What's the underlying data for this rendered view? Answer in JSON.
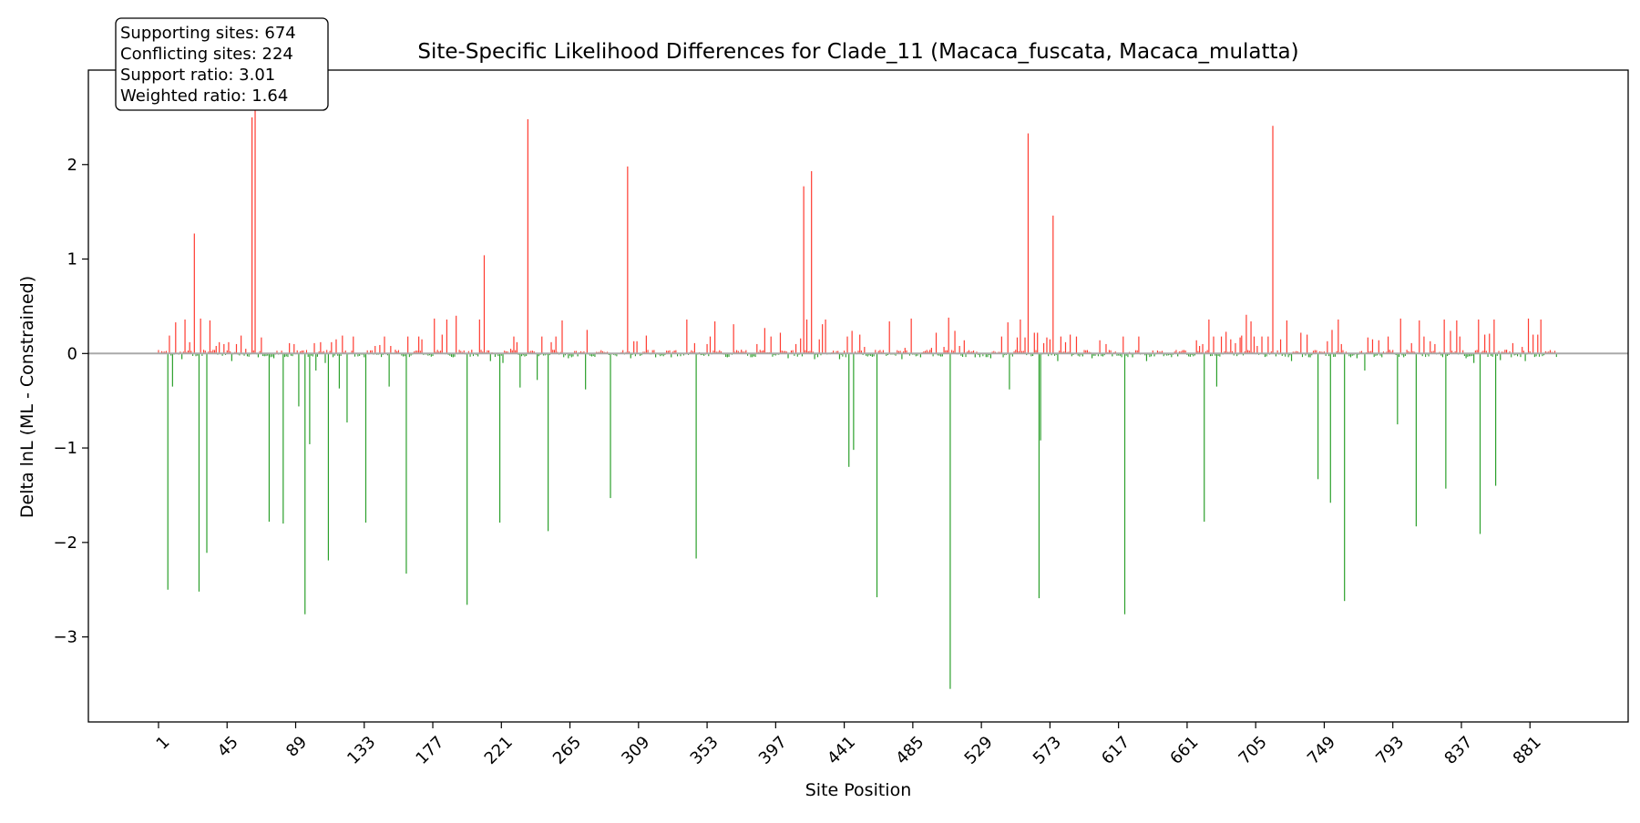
{
  "chart_data": {
    "type": "bar",
    "title": "Site-Specific Likelihood Differences for Clade_11 (Macaca_fuscata, Macaca_mulatta)",
    "xlabel": "Site Position",
    "ylabel": "Delta lnL (ML - Constrained)",
    "xlim": [
      -44,
      944
    ],
    "ylim": [
      -3.9,
      3.0
    ],
    "x_ticks": [
      1,
      45,
      89,
      133,
      177,
      221,
      265,
      309,
      353,
      397,
      441,
      485,
      529,
      573,
      617,
      661,
      705,
      749,
      793,
      837,
      881
    ],
    "y_ticks": [
      -3,
      -2,
      -1,
      0,
      1,
      2
    ],
    "y_tick_labels": [
      "−3",
      "−2",
      "−1",
      "0",
      "1",
      "2"
    ],
    "n_sites": 898,
    "grid": false,
    "zero_line": true,
    "colors": {
      "positive": "#ff3b30",
      "negative": "#2ca02c",
      "zero_line": "#aaaaaa"
    },
    "stats_box": [
      "Supporting sites: 674",
      "Conflicting sites: 224",
      "Support ratio: 3.01",
      "Weighted ratio: 1.64"
    ],
    "sites": [
      [
        7,
        -2.5
      ],
      [
        8,
        0.19
      ],
      [
        10,
        -0.35
      ],
      [
        12,
        0.33
      ],
      [
        16,
        -0.06
      ],
      [
        18,
        0.36
      ],
      [
        21,
        0.12
      ],
      [
        24,
        1.27
      ],
      [
        27,
        -2.52
      ],
      [
        28,
        0.37
      ],
      [
        32,
        -2.11
      ],
      [
        34,
        0.35
      ],
      [
        38,
        0.08
      ],
      [
        40,
        0.12
      ],
      [
        43,
        0.1
      ],
      [
        46,
        0.12
      ],
      [
        48,
        -0.08
      ],
      [
        51,
        0.1
      ],
      [
        54,
        0.19
      ],
      [
        57,
        0.05
      ],
      [
        61,
        2.5
      ],
      [
        63,
        2.6
      ],
      [
        65,
        -0.04
      ],
      [
        67,
        0.17
      ],
      [
        72,
        -1.78
      ],
      [
        75,
        -0.05
      ],
      [
        81,
        -1.8
      ],
      [
        85,
        0.11
      ],
      [
        88,
        0.1
      ],
      [
        91,
        -0.56
      ],
      [
        95,
        -2.76
      ],
      [
        98,
        -0.96
      ],
      [
        101,
        0.11
      ],
      [
        102,
        -0.18
      ],
      [
        105,
        0.12
      ],
      [
        108,
        -0.1
      ],
      [
        110,
        -2.19
      ],
      [
        112,
        0.12
      ],
      [
        115,
        0.15
      ],
      [
        117,
        -0.37
      ],
      [
        119,
        0.19
      ],
      [
        122,
        -0.73
      ],
      [
        126,
        0.18
      ],
      [
        134,
        -1.79
      ],
      [
        140,
        0.08
      ],
      [
        143,
        0.09
      ],
      [
        146,
        0.18
      ],
      [
        149,
        -0.35
      ],
      [
        150,
        0.08
      ],
      [
        153,
        0.04
      ],
      [
        160,
        -2.33
      ],
      [
        161,
        0.18
      ],
      [
        168,
        0.18
      ],
      [
        170,
        0.15
      ],
      [
        178,
        0.37
      ],
      [
        183,
        0.2
      ],
      [
        186,
        0.36
      ],
      [
        190,
        -0.04
      ],
      [
        192,
        0.4
      ],
      [
        199,
        -2.66
      ],
      [
        202,
        0.04
      ],
      [
        207,
        0.36
      ],
      [
        210,
        1.04
      ],
      [
        214,
        -0.08
      ],
      [
        220,
        -1.79
      ],
      [
        222,
        -0.1
      ],
      [
        227,
        0.05
      ],
      [
        229,
        0.18
      ],
      [
        231,
        0.12
      ],
      [
        233,
        -0.36
      ],
      [
        238,
        2.48
      ],
      [
        244,
        -0.28
      ],
      [
        247,
        0.18
      ],
      [
        251,
        -1.88
      ],
      [
        253,
        0.12
      ],
      [
        256,
        0.18
      ],
      [
        260,
        0.35
      ],
      [
        264,
        -0.05
      ],
      [
        270,
        -0.03
      ],
      [
        275,
        -0.38
      ],
      [
        276,
        0.25
      ],
      [
        291,
        -1.53
      ],
      [
        302,
        1.98
      ],
      [
        304,
        -0.05
      ],
      [
        306,
        0.13
      ],
      [
        308,
        0.13
      ],
      [
        314,
        0.19
      ],
      [
        320,
        -0.04
      ],
      [
        330,
        -0.04
      ],
      [
        340,
        0.36
      ],
      [
        345,
        0.11
      ],
      [
        346,
        -2.17
      ],
      [
        353,
        0.1
      ],
      [
        355,
        0.18
      ],
      [
        358,
        0.34
      ],
      [
        366,
        -0.04
      ],
      [
        370,
        0.31
      ],
      [
        375,
        0.04
      ],
      [
        385,
        0.1
      ],
      [
        390,
        0.27
      ],
      [
        394,
        0.18
      ],
      [
        400,
        0.22
      ],
      [
        405,
        -0.05
      ],
      [
        410,
        0.1
      ],
      [
        413,
        0.16
      ],
      [
        415,
        1.77
      ],
      [
        417,
        0.36
      ],
      [
        420,
        1.93
      ],
      [
        422,
        -0.06
      ],
      [
        425,
        0.15
      ],
      [
        427,
        0.31
      ],
      [
        429,
        0.36
      ],
      [
        434,
        0.03
      ],
      [
        438,
        -0.06
      ],
      [
        441,
        0.03
      ],
      [
        443,
        0.18
      ],
      [
        444,
        -1.2
      ],
      [
        446,
        0.24
      ],
      [
        447,
        -1.02
      ],
      [
        451,
        0.2
      ],
      [
        454,
        0.07
      ],
      [
        462,
        -2.58
      ],
      [
        470,
        0.34
      ],
      [
        478,
        -0.06
      ],
      [
        480,
        0.06
      ],
      [
        484,
        0.37
      ],
      [
        490,
        -0.04
      ],
      [
        497,
        0.06
      ],
      [
        500,
        0.22
      ],
      [
        505,
        0.07
      ],
      [
        508,
        0.38
      ],
      [
        509,
        -3.55
      ],
      [
        512,
        0.24
      ],
      [
        515,
        0.08
      ],
      [
        518,
        0.14
      ],
      [
        525,
        -0.04
      ],
      [
        535,
        -0.05
      ],
      [
        542,
        0.18
      ],
      [
        546,
        0.33
      ],
      [
        547,
        -0.38
      ],
      [
        552,
        0.17
      ],
      [
        554,
        0.36
      ],
      [
        557,
        0.17
      ],
      [
        559,
        2.33
      ],
      [
        563,
        0.22
      ],
      [
        565,
        0.22
      ],
      [
        566,
        -2.59
      ],
      [
        567,
        -0.92
      ],
      [
        569,
        0.11
      ],
      [
        571,
        0.17
      ],
      [
        573,
        0.15
      ],
      [
        575,
        1.46
      ],
      [
        578,
        -0.08
      ],
      [
        580,
        0.18
      ],
      [
        583,
        0.12
      ],
      [
        586,
        0.2
      ],
      [
        590,
        0.18
      ],
      [
        594,
        -0.03
      ],
      [
        600,
        -0.05
      ],
      [
        605,
        0.14
      ],
      [
        609,
        0.1
      ],
      [
        613,
        -0.03
      ],
      [
        620,
        0.18
      ],
      [
        621,
        -2.76
      ],
      [
        626,
        -0.04
      ],
      [
        630,
        0.18
      ],
      [
        635,
        -0.08
      ],
      [
        640,
        -0.03
      ],
      [
        655,
        -0.03
      ],
      [
        667,
        0.14
      ],
      [
        669,
        0.08
      ],
      [
        671,
        0.1
      ],
      [
        672,
        -1.78
      ],
      [
        675,
        0.36
      ],
      [
        678,
        0.18
      ],
      [
        680,
        -0.35
      ],
      [
        683,
        0.18
      ],
      [
        686,
        0.23
      ],
      [
        689,
        0.15
      ],
      [
        692,
        0.11
      ],
      [
        695,
        0.17
      ],
      [
        696,
        0.19
      ],
      [
        699,
        0.41
      ],
      [
        702,
        0.34
      ],
      [
        704,
        0.18
      ],
      [
        706,
        0.08
      ],
      [
        709,
        0.18
      ],
      [
        713,
        0.18
      ],
      [
        716,
        2.41
      ],
      [
        718,
        -0.03
      ],
      [
        721,
        0.15
      ],
      [
        725,
        0.35
      ],
      [
        728,
        -0.08
      ],
      [
        734,
        0.22
      ],
      [
        738,
        0.2
      ],
      [
        740,
        -0.04
      ],
      [
        745,
        -1.33
      ],
      [
        751,
        0.13
      ],
      [
        753,
        -1.58
      ],
      [
        754,
        0.25
      ],
      [
        758,
        0.36
      ],
      [
        760,
        0.1
      ],
      [
        762,
        -2.62
      ],
      [
        770,
        -0.05
      ],
      [
        775,
        -0.18
      ],
      [
        777,
        0.17
      ],
      [
        780,
        0.15
      ],
      [
        784,
        0.14
      ],
      [
        790,
        0.18
      ],
      [
        796,
        -0.75
      ],
      [
        798,
        0.37
      ],
      [
        805,
        0.11
      ],
      [
        808,
        -1.83
      ],
      [
        810,
        0.35
      ],
      [
        813,
        0.18
      ],
      [
        817,
        0.13
      ],
      [
        820,
        0.1
      ],
      [
        826,
        0.36
      ],
      [
        827,
        -1.43
      ],
      [
        830,
        0.24
      ],
      [
        834,
        0.35
      ],
      [
        836,
        0.18
      ],
      [
        840,
        -0.05
      ],
      [
        845,
        -0.1
      ],
      [
        848,
        0.36
      ],
      [
        849,
        -1.91
      ],
      [
        852,
        0.2
      ],
      [
        855,
        0.21
      ],
      [
        858,
        0.36
      ],
      [
        859,
        -1.4
      ],
      [
        862,
        -0.07
      ],
      [
        866,
        0.04
      ],
      [
        870,
        0.11
      ],
      [
        876,
        0.07
      ],
      [
        878,
        -0.08
      ],
      [
        880,
        0.37
      ],
      [
        883,
        0.2
      ],
      [
        886,
        0.2
      ],
      [
        888,
        0.36
      ]
    ]
  }
}
